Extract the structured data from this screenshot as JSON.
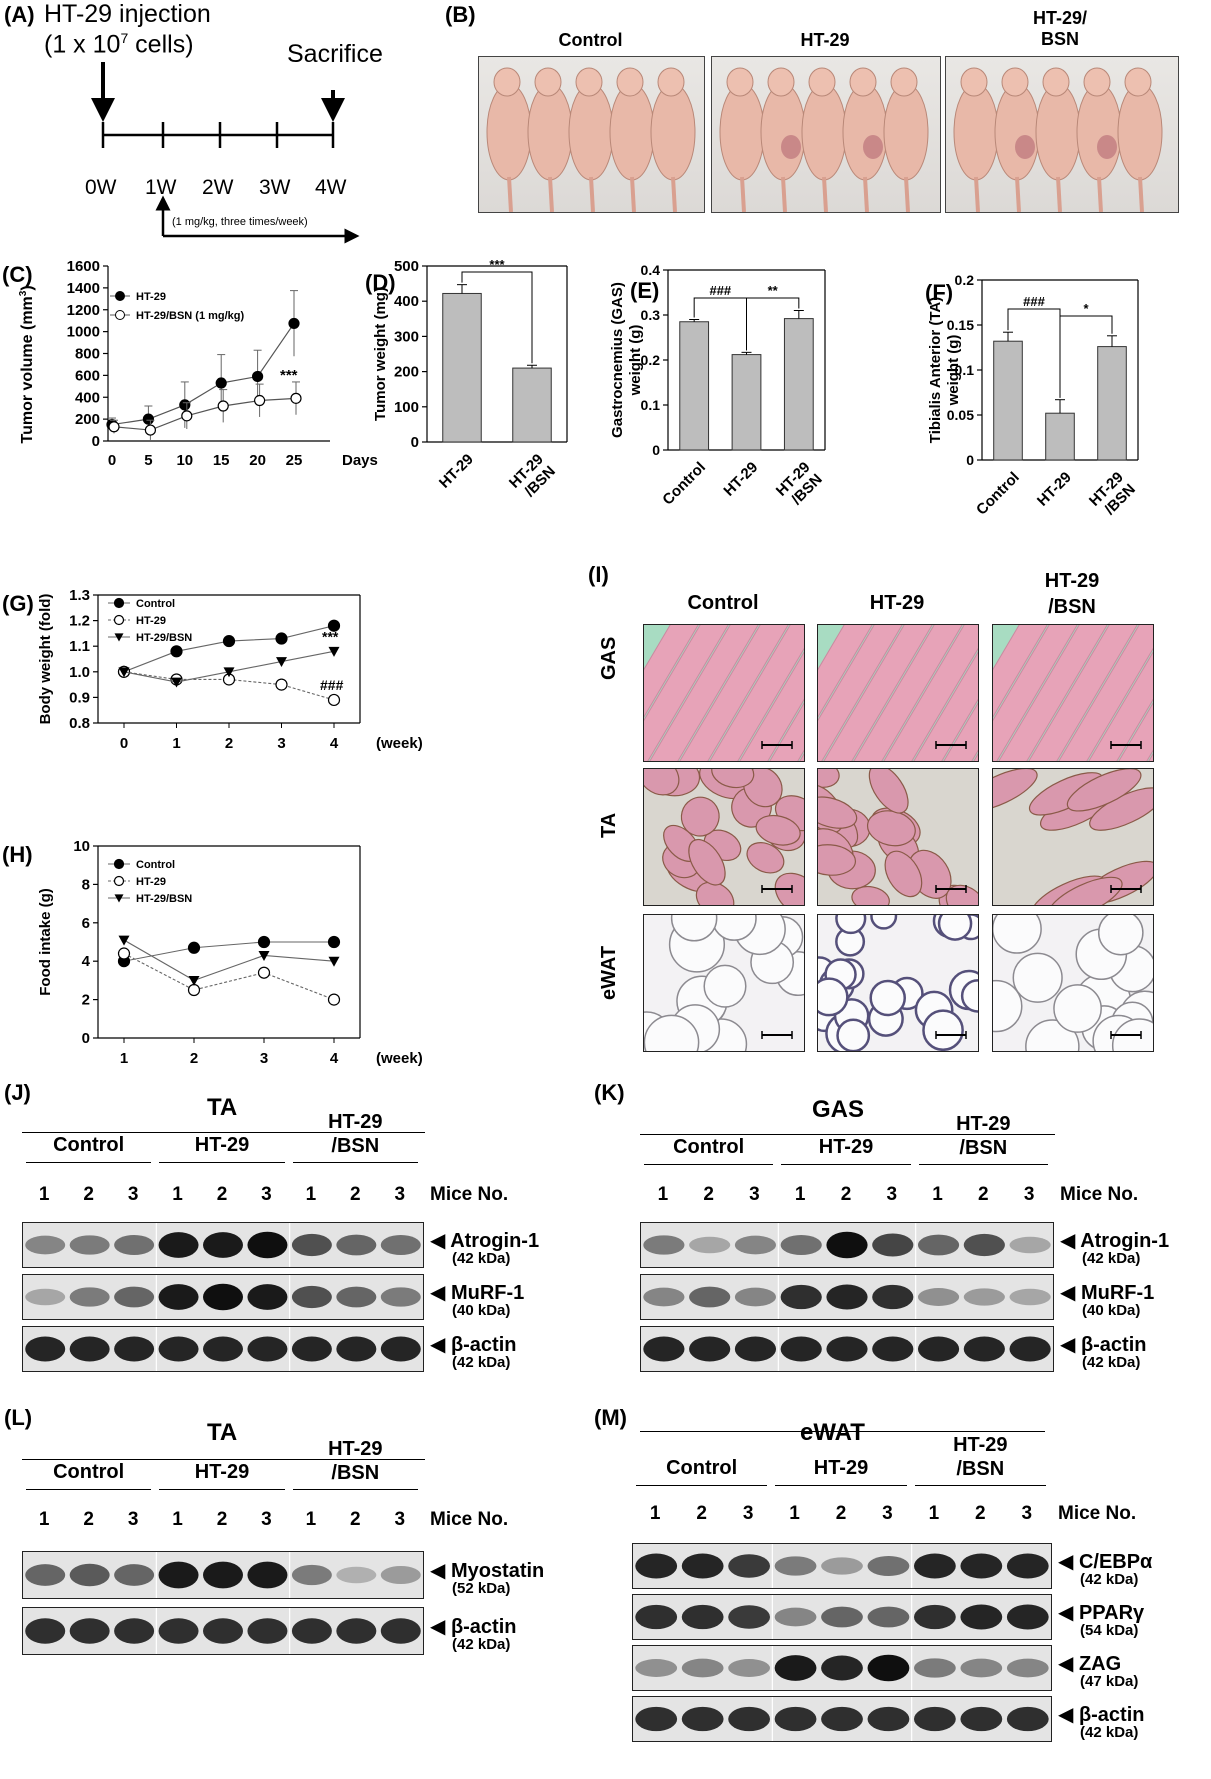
{
  "panels": {
    "A": {
      "label": "(A)",
      "injection": "HT-29 injection",
      "cells": "(1 x 10",
      "cells_exp": "7",
      "cells_end": " cells)",
      "sacrifice": "Sacrifice",
      "timepoints": [
        "0W",
        "1W",
        "2W",
        "3W",
        "4W"
      ],
      "treatment": "(1 mg/kg, three times/week)"
    },
    "B": {
      "label": "(B)",
      "groups": [
        "Control",
        "HT-29",
        "HT-29/\nBSN"
      ],
      "group_line1": [
        "Control",
        "HT-29",
        "HT-29/"
      ],
      "group_line2": [
        "",
        "",
        "BSN"
      ]
    },
    "I": {
      "label": "(I)",
      "columns": [
        "Control",
        "HT-29",
        "HT-29\n/BSN"
      ],
      "col1": "Control",
      "col2": "HT-29",
      "col3a": "HT-29",
      "col3b": "/BSN",
      "rows": [
        "GAS",
        "TA",
        "eWAT"
      ]
    }
  },
  "colors": {
    "bar_fill": "#bdbdbd",
    "he_pink": "#e7a3b8",
    "he_green": "#a8dcc2",
    "fat_bg": "#f3f2f4"
  },
  "chart_data": [
    {
      "id": "C",
      "label": "(C)",
      "type": "line",
      "xlabel": "Days",
      "ylabel": "Tumor volume (mm",
      "ylabel_sup": "3",
      "ylabel_end": ")",
      "x": [
        0,
        5,
        10,
        15,
        20,
        25
      ],
      "ylim": [
        0,
        1600
      ],
      "yticks": [
        0,
        200,
        400,
        600,
        800,
        1000,
        1200,
        1400,
        1600
      ],
      "series": [
        {
          "name": "HT-29",
          "values": [
            150,
            200,
            330,
            530,
            590,
            1075
          ],
          "err": [
            60,
            120,
            210,
            260,
            240,
            300
          ]
        },
        {
          "name": "HT-29/BSN (1 mg/kg)",
          "values": [
            130,
            100,
            230,
            320,
            370,
            390
          ],
          "err": [
            60,
            90,
            120,
            150,
            150,
            150
          ]
        }
      ],
      "annotation": "***"
    },
    {
      "id": "D",
      "label": "(D)",
      "type": "bar",
      "ylabel": "Tumor weight (mg)",
      "ylim": [
        0,
        500
      ],
      "yticks": [
        0,
        100,
        200,
        300,
        400,
        500
      ],
      "categories": [
        "HT-29",
        "HT-29\n/BSN"
      ],
      "cat_line1": [
        "HT-29",
        "HT-29"
      ],
      "cat_line2": [
        "",
        "/BSN"
      ],
      "values": [
        422,
        210
      ],
      "err": [
        25,
        8
      ],
      "annotation": "***"
    },
    {
      "id": "E",
      "label": "(E)",
      "type": "bar",
      "ylabel": "Gastrocnemius (GAS)",
      "ylabel2": "weight (g)",
      "ylim": [
        0,
        0.4
      ],
      "yticks": [
        "0",
        "0.1",
        "0.2",
        "0.3",
        "0.4"
      ],
      "categories": [
        "Control",
        "HT-29",
        "HT-29\n/BSN"
      ],
      "cat_line1": [
        "Control",
        "HT-29",
        "HT-29"
      ],
      "cat_line2": [
        "",
        "",
        "/BSN"
      ],
      "values": [
        0.285,
        0.212,
        0.292
      ],
      "err": [
        0.005,
        0.005,
        0.018
      ],
      "annotations": [
        "###",
        "**"
      ]
    },
    {
      "id": "F",
      "label": "(F)",
      "type": "bar",
      "ylabel": "Tibialis Anterior (TA)",
      "ylabel2": "weight (g)",
      "ylim": [
        0,
        0.2
      ],
      "yticks": [
        "0",
        "0.05",
        "0.1",
        "0.15",
        "0.2"
      ],
      "categories": [
        "Control",
        "HT-29",
        "HT-29\n/BSN"
      ],
      "cat_line1": [
        "Control",
        "HT-29",
        "HT-29"
      ],
      "cat_line2": [
        "",
        "",
        "/BSN"
      ],
      "values": [
        0.132,
        0.052,
        0.126
      ],
      "err": [
        0.01,
        0.015,
        0.012
      ],
      "annotations": [
        "###",
        "*"
      ]
    },
    {
      "id": "G",
      "label": "(G)",
      "type": "line",
      "xlabel": "(week)",
      "ylabel": "Body weight (fold)",
      "x": [
        0,
        1,
        2,
        3,
        4
      ],
      "ylim": [
        0.8,
        1.3
      ],
      "yticks": [
        "0.8",
        "0.9",
        "1.0",
        "1.1",
        "1.2",
        "1.3"
      ],
      "series": [
        {
          "name": "Control",
          "values": [
            1.0,
            1.08,
            1.12,
            1.13,
            1.18
          ]
        },
        {
          "name": "HT-29",
          "values": [
            1.0,
            0.97,
            0.97,
            0.95,
            0.89
          ]
        },
        {
          "name": "HT-29/BSN",
          "values": [
            1.0,
            0.96,
            1.0,
            1.04,
            1.08
          ]
        }
      ],
      "annotations": [
        "***",
        "###"
      ]
    },
    {
      "id": "H",
      "label": "(H)",
      "type": "line",
      "xlabel": "(week)",
      "ylabel": "Food intake (g)",
      "x": [
        1,
        2,
        3,
        4
      ],
      "ylim": [
        0,
        10
      ],
      "yticks": [
        0,
        2,
        4,
        6,
        8,
        10
      ],
      "series": [
        {
          "name": "Control",
          "values": [
            4.0,
            4.7,
            5.0,
            5.0
          ]
        },
        {
          "name": "HT-29",
          "values": [
            4.4,
            2.5,
            3.4,
            2.0
          ]
        },
        {
          "name": "HT-29/BSN",
          "values": [
            5.1,
            3.0,
            4.3,
            4.0
          ]
        }
      ]
    }
  ],
  "blots": {
    "J": {
      "label": "(J)",
      "tissue": "TA",
      "groups": [
        "Control",
        "HT-29",
        "HT-29\n/BSN"
      ],
      "g3a": "HT-29",
      "g3b": "/BSN",
      "lanes": [
        "1",
        "2",
        "3",
        "1",
        "2",
        "3",
        "1",
        "2",
        "3"
      ],
      "mice": "Mice No.",
      "proteins": [
        {
          "name": "Atrogin-1",
          "kda": "(42 kDa)",
          "intensity": [
            0.45,
            0.5,
            0.55,
            0.95,
            0.95,
            1.0,
            0.7,
            0.6,
            0.55
          ]
        },
        {
          "name": "MuRF-1",
          "kda": "(40 kDa)",
          "intensity": [
            0.3,
            0.5,
            0.6,
            0.95,
            1.0,
            0.95,
            0.7,
            0.6,
            0.5
          ]
        },
        {
          "name": "β-actin",
          "kda": "(42 kDa)",
          "intensity": [
            0.9,
            0.9,
            0.9,
            0.9,
            0.9,
            0.9,
            0.9,
            0.9,
            0.9
          ]
        }
      ]
    },
    "K": {
      "label": "(K)",
      "tissue": "GAS",
      "groups": [
        "Control",
        "HT-29",
        "HT-29\n/BSN"
      ],
      "g3a": "HT-29",
      "g3b": "/BSN",
      "lanes": [
        "1",
        "2",
        "3",
        "1",
        "2",
        "3",
        "1",
        "2",
        "3"
      ],
      "mice": "Mice No.",
      "proteins": [
        {
          "name": "Atrogin-1",
          "kda": "(42 kDa)",
          "intensity": [
            0.5,
            0.3,
            0.45,
            0.55,
            1.0,
            0.75,
            0.6,
            0.7,
            0.3
          ]
        },
        {
          "name": "MuRF-1",
          "kda": "(40 kDa)",
          "intensity": [
            0.45,
            0.6,
            0.45,
            0.85,
            0.9,
            0.85,
            0.4,
            0.35,
            0.3
          ]
        },
        {
          "name": "β-actin",
          "kda": "(42 kDa)",
          "intensity": [
            0.9,
            0.9,
            0.9,
            0.9,
            0.9,
            0.9,
            0.9,
            0.9,
            0.9
          ]
        }
      ]
    },
    "L": {
      "label": "(L)",
      "tissue": "TA",
      "groups": [
        "Control",
        "HT-29",
        "HT-29\n/BSN"
      ],
      "g3a": "HT-29",
      "g3b": "/BSN",
      "lanes": [
        "1",
        "2",
        "3",
        "1",
        "2",
        "3",
        "1",
        "2",
        "3"
      ],
      "mice": "Mice No.",
      "proteins": [
        {
          "name": "Myostatin",
          "kda": "(52 kDa)",
          "intensity": [
            0.6,
            0.65,
            0.6,
            0.95,
            0.95,
            0.95,
            0.5,
            0.25,
            0.35
          ]
        },
        {
          "name": "β-actin",
          "kda": "(42 kDa)",
          "intensity": [
            0.85,
            0.85,
            0.85,
            0.85,
            0.85,
            0.85,
            0.85,
            0.85,
            0.85
          ]
        }
      ]
    },
    "M": {
      "label": "(M)",
      "tissue": "eWAT",
      "groups": [
        "Control",
        "HT-29",
        "HT-29\n/BSN"
      ],
      "g3a": "HT-29",
      "g3b": "/BSN",
      "lanes": [
        "1",
        "2",
        "3",
        "1",
        "2",
        "3",
        "1",
        "2",
        "3"
      ],
      "mice": "Mice No.",
      "proteins": [
        {
          "name": "C/EBPα",
          "kda": "(42 kDa)",
          "intensity": [
            0.9,
            0.9,
            0.8,
            0.5,
            0.35,
            0.55,
            0.9,
            0.9,
            0.9
          ]
        },
        {
          "name": "PPARγ",
          "kda": "(54 kDa)",
          "intensity": [
            0.85,
            0.85,
            0.8,
            0.45,
            0.6,
            0.6,
            0.85,
            0.9,
            0.9
          ]
        },
        {
          "name": "ZAG",
          "kda": "(47 kDa)",
          "intensity": [
            0.4,
            0.45,
            0.4,
            0.95,
            0.9,
            1.0,
            0.5,
            0.45,
            0.45
          ]
        },
        {
          "name": "β-actin",
          "kda": "(42 kDa)",
          "intensity": [
            0.85,
            0.85,
            0.85,
            0.85,
            0.85,
            0.85,
            0.85,
            0.85,
            0.85
          ]
        }
      ]
    }
  }
}
